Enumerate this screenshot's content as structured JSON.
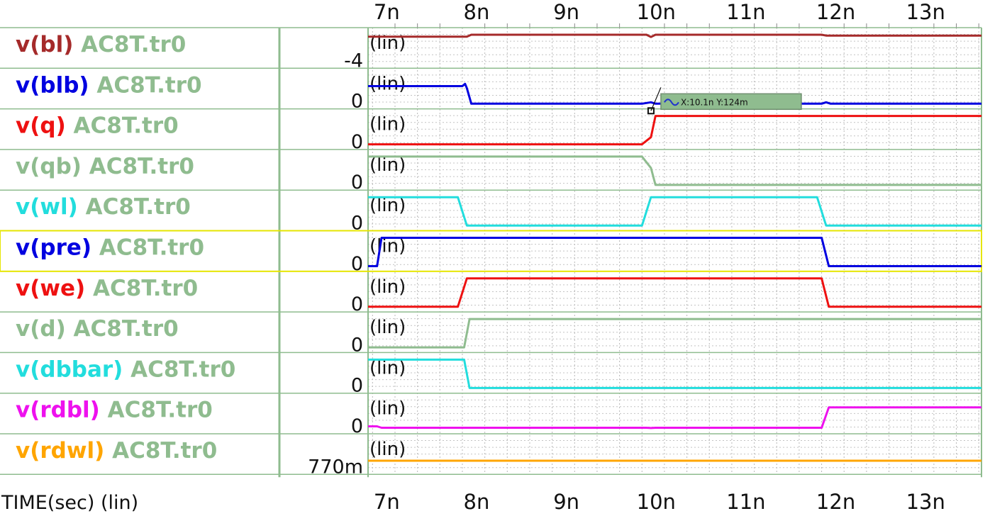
{
  "chart_data": {
    "type": "line",
    "title": "",
    "xlabel": "TIME(sec) (lin)",
    "xlim": [
      6.95,
      13.78
    ],
    "x_ticks": [
      7,
      8,
      9,
      10,
      11,
      12,
      13
    ],
    "x_tick_labels": [
      "7n",
      "8n",
      "9n",
      "10n",
      "11n",
      "12n",
      "13n"
    ],
    "grid": true,
    "scale_label": "(lin)",
    "cursor": {
      "x": 10.1,
      "label": "X:10.1n Y:124m"
    },
    "series": [
      {
        "name": "v(bl)",
        "suffix": "AC8T.tr0",
        "color": "#a52a2a",
        "ytick": "-4",
        "x": [
          6.95,
          8.05,
          8.1,
          10.05,
          10.1,
          10.15,
          12.0,
          12.05,
          13.78
        ],
        "y": [
          0.93,
          0.93,
          1.0,
          1.0,
          0.92,
          1.0,
          1.0,
          0.97,
          0.97
        ]
      },
      {
        "name": "v(blb)",
        "suffix": "AC8T.tr0",
        "color": "#0000e0",
        "ytick": "0",
        "x": [
          6.95,
          8.0,
          8.03,
          8.05,
          8.1,
          10.0,
          10.1,
          10.15,
          12.0,
          12.05,
          12.1,
          13.78
        ],
        "y": [
          0.62,
          0.62,
          0.7,
          0.55,
          0.0,
          0.0,
          0.05,
          0.0,
          0.0,
          0.05,
          0.0,
          0.0
        ]
      },
      {
        "name": "v(q)",
        "suffix": "AC8T.tr0",
        "color": "#ee1111",
        "ytick": "0",
        "x": [
          6.95,
          10.0,
          10.1,
          10.15,
          13.78
        ],
        "y": [
          0.0,
          0.0,
          0.25,
          1.0,
          1.0
        ]
      },
      {
        "name": "v(qb)",
        "suffix": "AC8T.tr0",
        "color": "#8fbc8f",
        "ytick": "0",
        "x": [
          6.95,
          10.0,
          10.1,
          10.15,
          13.78
        ],
        "y": [
          1.0,
          1.0,
          0.6,
          0.0,
          0.0
        ]
      },
      {
        "name": "v(wl)",
        "suffix": "AC8T.tr0",
        "color": "#22dddd",
        "ytick": "0",
        "x": [
          6.95,
          7.95,
          8.05,
          10.0,
          10.1,
          11.95,
          12.05,
          13.78
        ],
        "y": [
          1.0,
          1.0,
          0.0,
          0.0,
          1.0,
          1.0,
          0.0,
          0.0
        ]
      },
      {
        "name": "v(pre)",
        "suffix": "AC8T.tr0",
        "color": "#0000e0",
        "ytick": "0",
        "x": [
          6.95,
          7.05,
          7.1,
          12.0,
          12.08,
          13.78
        ],
        "y": [
          0.0,
          0.0,
          1.0,
          1.0,
          0.0,
          0.0
        ]
      },
      {
        "name": "v(we)",
        "suffix": "AC8T.tr0",
        "color": "#ee1111",
        "ytick": "0",
        "x": [
          6.95,
          7.95,
          8.05,
          12.0,
          12.08,
          13.78
        ],
        "y": [
          0.0,
          0.0,
          1.0,
          1.0,
          0.0,
          0.0
        ]
      },
      {
        "name": "v(d)",
        "suffix": "AC8T.tr0",
        "color": "#8fbc8f",
        "ytick": "0",
        "x": [
          6.95,
          8.02,
          8.08,
          13.78
        ],
        "y": [
          0.0,
          0.0,
          1.0,
          1.0
        ]
      },
      {
        "name": "v(dbbar)",
        "suffix": "AC8T.tr0",
        "color": "#22dddd",
        "ytick": "0",
        "x": [
          6.95,
          8.02,
          8.08,
          13.78
        ],
        "y": [
          1.0,
          1.0,
          0.0,
          0.0
        ]
      },
      {
        "name": "v(rdbl)",
        "suffix": "AC8T.tr0",
        "color": "#ee11ee",
        "ytick": "0",
        "x": [
          6.95,
          7.05,
          7.1,
          10.05,
          10.1,
          10.15,
          12.0,
          12.08,
          13.78
        ],
        "y": [
          0.08,
          0.08,
          0.03,
          0.03,
          0.02,
          0.03,
          0.03,
          0.75,
          0.75
        ]
      },
      {
        "name": "v(rdwl)",
        "suffix": "AC8T.tr0",
        "color": "#ffa500",
        "ytick": "770m",
        "x": [
          6.95,
          13.78
        ],
        "y": [
          0.3,
          0.3
        ]
      }
    ]
  }
}
